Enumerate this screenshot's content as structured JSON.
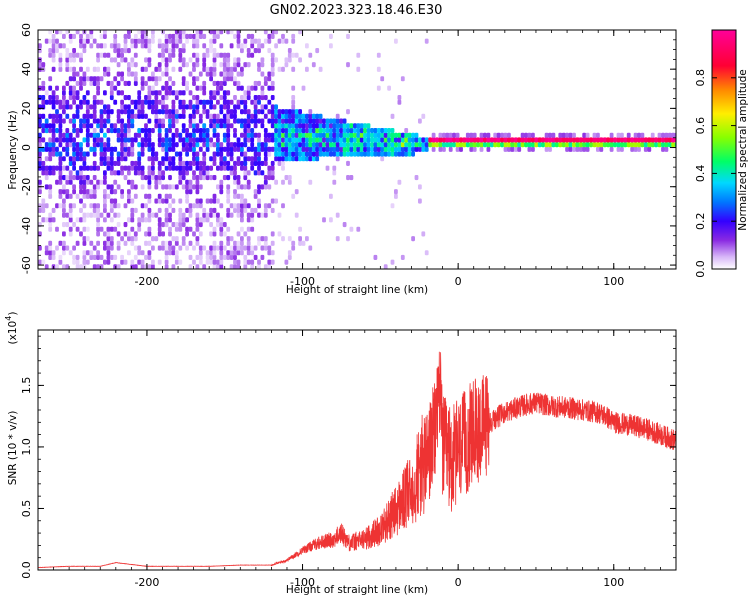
{
  "figure": {
    "title": "GN02.2023.323.18.46.E30"
  },
  "chart_data": [
    {
      "type": "heatmap",
      "title": "",
      "xlabel": "Height of straight line (km)",
      "ylabel": "Frequency (Hz)",
      "xlim": [
        -270,
        140
      ],
      "ylim": [
        -62,
        60
      ],
      "x_ticks": [
        -200,
        -100,
        0,
        100
      ],
      "y_ticks": [
        -60,
        -40,
        -20,
        0,
        20,
        40,
        60
      ],
      "x_tick_labels": [
        "-200",
        "-100",
        "0",
        "100"
      ],
      "y_tick_labels": [
        "-60",
        "-40",
        "-20",
        "0",
        "20",
        "40",
        "60"
      ],
      "colorbar": {
        "label": "Normalized spectral amplitude",
        "range": [
          0,
          1
        ],
        "ticks": [
          0.0,
          0.2,
          0.4,
          0.6,
          0.8
        ],
        "tick_labels": [
          "0.0",
          "0.2",
          "0.4",
          "0.6",
          "0.8"
        ],
        "colormap": [
          "#ffffff",
          "#d8b8f8",
          "#8a2be2",
          "#3300ff",
          "#0077ff",
          "#00d8ff",
          "#00ff66",
          "#88ff00",
          "#ffee00",
          "#ff8800",
          "#ff0033",
          "#ff0099"
        ]
      },
      "regions": [
        {
          "x_range": [
            -270,
            -120
          ],
          "freq_center": 0,
          "freq_halfwidth": 60,
          "amplitude": [
            0.02,
            0.35
          ],
          "description_level": "broadband noise"
        },
        {
          "x_range": [
            -120,
            -20
          ],
          "freq_center": 5,
          "freq_halfwidth": 12,
          "amplitude": [
            0.3,
            0.6
          ]
        },
        {
          "x_range": [
            -20,
            140
          ],
          "freq_center": 2,
          "freq_halfwidth": 2,
          "amplitude": [
            0.85,
            1.0
          ]
        }
      ],
      "grid": false
    },
    {
      "type": "line",
      "title": "",
      "xlabel": "Height of straight line (km)",
      "ylabel": "SNR (10 * v/v)",
      "y_multiplier": "(x10",
      "y_multiplier_exp": "4",
      "y_multiplier_close": ")",
      "xlim": [
        -270,
        140
      ],
      "ylim": [
        0,
        1.95
      ],
      "x_ticks": [
        -200,
        -100,
        0,
        100
      ],
      "y_ticks": [
        0.0,
        0.5,
        1.0,
        1.5
      ],
      "x_tick_labels": [
        "-200",
        "-100",
        "0",
        "100"
      ],
      "y_tick_labels": [
        "0.0",
        "0.5",
        "1.0",
        "1.5"
      ],
      "color": "#ee3333",
      "series": [
        {
          "x": [
            -270,
            -250,
            -230,
            -220,
            -200,
            -180,
            -160,
            -140,
            -120,
            -110,
            -100,
            -90,
            -80,
            -75,
            -70,
            -60,
            -50,
            -40,
            -30,
            -25,
            -20,
            -15,
            -12,
            -10,
            -5,
            0,
            10,
            20,
            30,
            40,
            50,
            60,
            70,
            80,
            90,
            95,
            100,
            110,
            120,
            130,
            140
          ],
          "y": [
            0.02,
            0.03,
            0.03,
            0.06,
            0.03,
            0.03,
            0.03,
            0.04,
            0.04,
            0.08,
            0.16,
            0.22,
            0.25,
            0.3,
            0.22,
            0.25,
            0.33,
            0.48,
            0.65,
            0.8,
            0.9,
            1.1,
            1.55,
            1.0,
            0.9,
            0.95,
            1.12,
            1.2,
            1.28,
            1.33,
            1.36,
            1.33,
            1.32,
            1.3,
            1.28,
            1.25,
            1.2,
            1.18,
            1.15,
            1.1,
            1.05
          ]
        }
      ],
      "grid": false
    }
  ]
}
